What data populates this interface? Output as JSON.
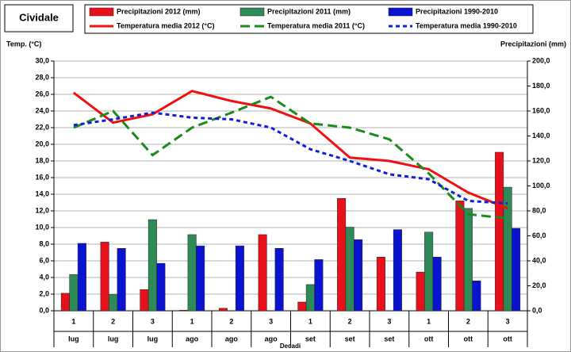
{
  "chart_data": {
    "type": "combo",
    "title": "Cividale",
    "y_label": "Temp. (°C)",
    "y2_label": "Precipitazioni (mm)",
    "x_label": "Decadi",
    "categories": [
      "1",
      "2",
      "3",
      "1",
      "2",
      "3",
      "1",
      "2",
      "3",
      "1",
      "2",
      "3"
    ],
    "groups": [
      "lug",
      "lug",
      "lug",
      "ago",
      "ago",
      "ago",
      "set",
      "set",
      "set",
      "ott",
      "ott",
      "ott"
    ],
    "ylim": [
      0,
      30
    ],
    "yticks": [
      {
        "value": 0,
        "label": "0,0"
      },
      {
        "value": 2,
        "label": "2,0"
      },
      {
        "value": 4,
        "label": "4,0"
      },
      {
        "value": 6,
        "label": "6,0"
      },
      {
        "value": 8,
        "label": "8,0"
      },
      {
        "value": 10,
        "label": "10,0"
      },
      {
        "value": 12,
        "label": "12,0"
      },
      {
        "value": 14,
        "label": "14,0"
      },
      {
        "value": 16,
        "label": "16,0"
      },
      {
        "value": 18,
        "label": "18,0"
      },
      {
        "value": 20,
        "label": "20,0"
      },
      {
        "value": 22,
        "label": "22,0"
      },
      {
        "value": 24,
        "label": "24,0"
      },
      {
        "value": 26,
        "label": "26,0"
      },
      {
        "value": 28,
        "label": "28,0"
      },
      {
        "value": 30,
        "label": "30,0"
      }
    ],
    "y2lim": [
      0,
      200
    ],
    "y2ticks": [
      {
        "value": 0,
        "label": "0,0"
      },
      {
        "value": 20,
        "label": "20,0"
      },
      {
        "value": 40,
        "label": "40,0"
      },
      {
        "value": 60,
        "label": "60,0"
      },
      {
        "value": 80,
        "label": "80,0"
      },
      {
        "value": 100,
        "label": "100,0"
      },
      {
        "value": 120,
        "label": "120,0"
      },
      {
        "value": 140,
        "label": "140,0"
      },
      {
        "value": 160,
        "label": "160,0"
      },
      {
        "value": 180,
        "label": "180,0"
      },
      {
        "value": 200,
        "label": "200,0"
      }
    ],
    "grid": true,
    "series": [
      {
        "name": "Precipitazioni 2012 (mm)",
        "kind": "bar",
        "axis": "y2",
        "color": "#e8101a",
        "values": [
          14,
          55,
          17,
          0.5,
          2,
          61,
          7,
          90,
          43,
          31,
          88,
          127
        ]
      },
      {
        "name": "Precipitazioni 2011 (mm)",
        "kind": "bar",
        "axis": "y2",
        "color": "#2e8b57",
        "values": [
          29,
          13,
          73,
          61,
          0,
          0,
          21,
          67,
          0,
          63,
          82,
          99
        ]
      },
      {
        "name": "Precipitazioni 1990-2010",
        "kind": "bar",
        "axis": "y2",
        "color": "#0a14d0",
        "values": [
          54,
          50,
          38,
          52,
          52,
          50,
          41,
          57,
          65,
          43,
          24,
          66
        ]
      },
      {
        "name": "Temperatura media 2012 (°C)",
        "kind": "line",
        "color": "#f01010",
        "dash": "none",
        "values": [
          26.2,
          22.6,
          23.6,
          26.4,
          25.2,
          24.3,
          22.5,
          18.4,
          18.0,
          17.0,
          14.2,
          12.3
        ]
      },
      {
        "name": "Temperatura media 2011 (°C)",
        "kind": "line",
        "color": "#1a8a1a",
        "dash": "12 6",
        "values": [
          22.0,
          24.0,
          18.7,
          22.0,
          23.8,
          25.7,
          22.5,
          22.0,
          20.6,
          16.5,
          11.6,
          11.1
        ]
      },
      {
        "name": "Temperatura media 1990-2010",
        "kind": "line",
        "color": "#1020d8",
        "dash": "5 4",
        "values": [
          22.3,
          23.0,
          23.8,
          23.2,
          23.0,
          22.0,
          19.4,
          18.0,
          16.4,
          15.8,
          13.2,
          12.9
        ]
      }
    ]
  }
}
